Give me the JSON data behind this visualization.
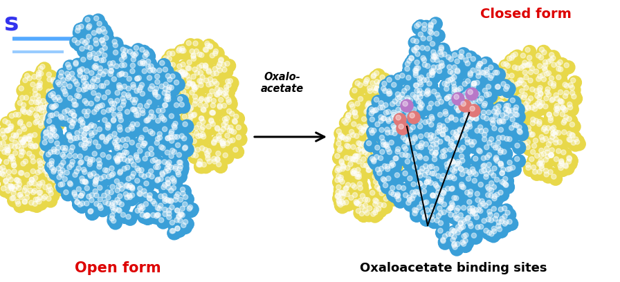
{
  "bg_color": "#ffffff",
  "open_form_label": "Open form",
  "closed_form_label": "Closed form",
  "oxaloacetate_label": "Oxalo-\nacetate",
  "binding_sites_label": "Oxaloacetate binding sites",
  "blue_color": "#3a9fd8",
  "yellow_color": "#e8d84a",
  "pink_color": "#e07878",
  "purple_color": "#b878c8",
  "open_form_label_color": "#dd0000",
  "closed_form_label_color": "#dd0000",
  "binding_sites_label_color": "#000000",
  "oxalo_label_color": "#000000",
  "partial_s_color": "#3333ee",
  "line1_color": "#55aaff",
  "line2_color": "#99ccff",
  "sphere_r": 0.095,
  "highlight_alpha": 0.45
}
